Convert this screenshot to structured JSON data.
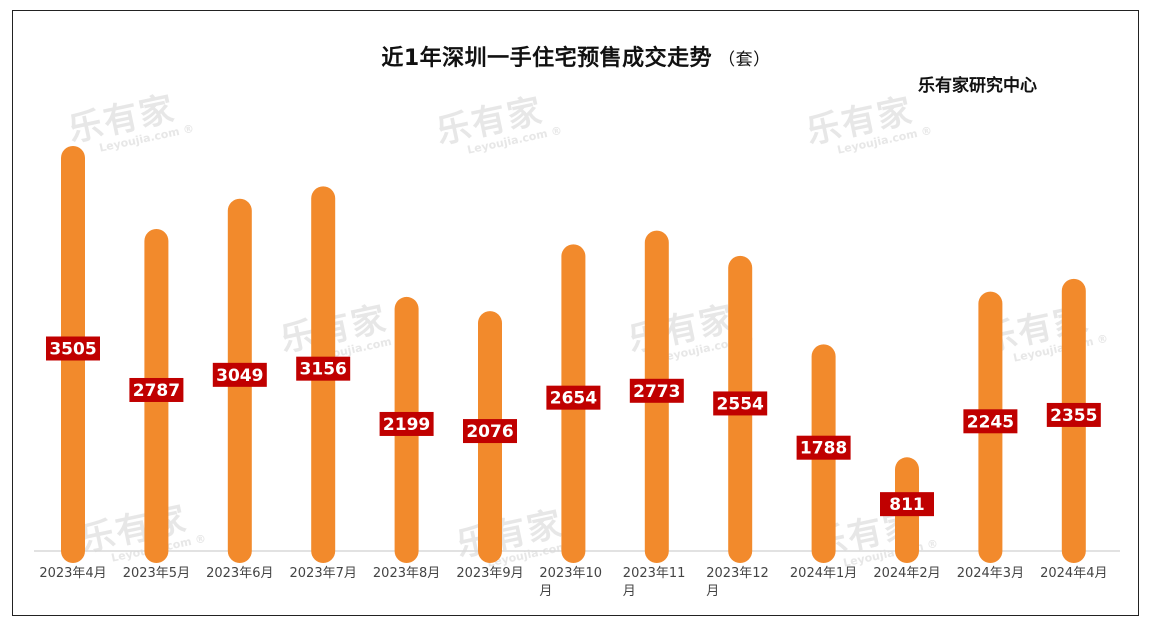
{
  "header": {
    "title": "近1年深圳一手住宅预售成交走势",
    "unit": "（套）",
    "brand": "乐有家研究中心"
  },
  "watermark": {
    "text": "乐有家",
    "sub": "Leyoujia.com ®"
  },
  "colors": {
    "bar": "#F28A2C",
    "label_bg": "#C00000",
    "label_text": "#FFFFFF",
    "axis": "#D9D9D9"
  },
  "chart_data": {
    "type": "bar",
    "title": "近1年深圳一手住宅预售成交走势",
    "unit": "套",
    "categories": [
      "2023年4月",
      "2023年5月",
      "2023年6月",
      "2023年7月",
      "2023年8月",
      "2023年9月",
      "2023年10月",
      "2023年11月",
      "2023年12月",
      "2024年1月",
      "2024年2月",
      "2024年3月",
      "2024年4月"
    ],
    "category_lines": [
      [
        "2023年4月"
      ],
      [
        "2023年5月"
      ],
      [
        "2023年6月"
      ],
      [
        "2023年7月"
      ],
      [
        "2023年8月"
      ],
      [
        "2023年9月"
      ],
      [
        "2023年10",
        "月"
      ],
      [
        "2023年11",
        "月"
      ],
      [
        "2023年12",
        "月"
      ],
      [
        "2024年1月"
      ],
      [
        "2024年2月"
      ],
      [
        "2024年3月"
      ],
      [
        "2024年4月"
      ]
    ],
    "values": [
      3505,
      2787,
      3049,
      3156,
      2199,
      2076,
      2654,
      2773,
      2554,
      1788,
      811,
      2245,
      2355
    ],
    "ylim": [
      0,
      3600
    ],
    "grid": false,
    "legend": "none",
    "data_labels": true
  }
}
